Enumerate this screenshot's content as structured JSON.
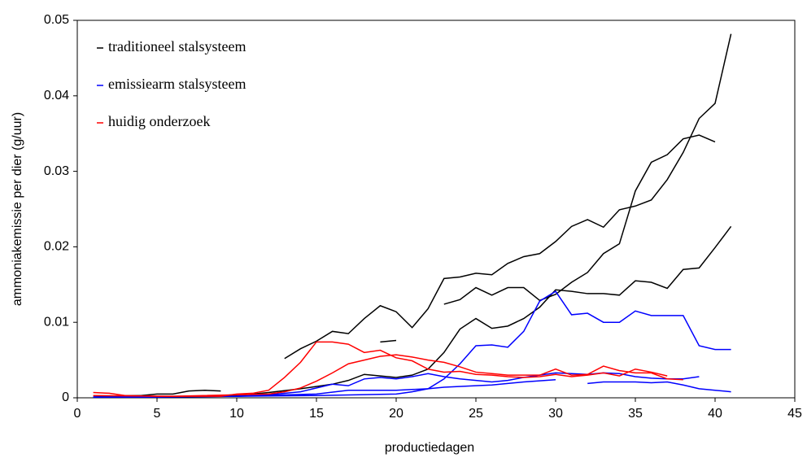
{
  "chart_data": {
    "type": "line",
    "xlabel": "productiedagen",
    "ylabel": "ammoniakemissie per dier (g/uur)",
    "xlim": [
      0,
      45
    ],
    "xticks": [
      0,
      5,
      10,
      15,
      20,
      25,
      30,
      35,
      40,
      45
    ],
    "ylim": [
      0,
      0.05
    ],
    "yticks": [
      0,
      0.01,
      0.02,
      0.03,
      0.04,
      0.05
    ],
    "series": [
      {
        "name": "traditioneel stalsysteem",
        "color": "#000000",
        "lines": [
          {
            "x": [
              1,
              2,
              3,
              4,
              5,
              6,
              7,
              8,
              9
            ],
            "values": [
              0.0001,
              0.0002,
              0.0003,
              0.0003,
              0.0005,
              0.0005,
              0.0009,
              0.001,
              0.0009
            ]
          },
          {
            "x": [
              13,
              14,
              15,
              16,
              17,
              18,
              19,
              20,
              21,
              22,
              23,
              24,
              25,
              26,
              27,
              28,
              29,
              30,
              31,
              32,
              33,
              34,
              35,
              36,
              37,
              38,
              39,
              40,
              41
            ],
            "values": [
              0.0052,
              0.0065,
              0.0075,
              0.0088,
              0.0085,
              0.0105,
              0.0122,
              0.0114,
              0.0093,
              0.0118,
              0.0158,
              0.016,
              0.0165,
              0.0163,
              0.0178,
              0.0187,
              0.0191,
              0.0207,
              0.0227,
              0.0236,
              0.0226,
              0.0249,
              0.0254,
              0.0262,
              0.0289,
              0.0325,
              0.037,
              0.039,
              0.0482
            ]
          },
          {
            "x": [
              19,
              20
            ],
            "values": [
              0.0074,
              0.0076
            ]
          },
          {
            "x": [
              23,
              24,
              25,
              26,
              27,
              28,
              29,
              30,
              31,
              32,
              33,
              34,
              35,
              36,
              37,
              38,
              39,
              40
            ],
            "values": [
              0.0124,
              0.013,
              0.0146,
              0.0136,
              0.0146,
              0.0146,
              0.0129,
              0.0137,
              0.0153,
              0.0166,
              0.0191,
              0.0204,
              0.0274,
              0.0312,
              0.0322,
              0.0343,
              0.0348,
              0.0339
            ]
          },
          {
            "x": [
              1,
              4,
              7,
              10,
              12,
              14,
              16,
              17,
              18,
              19,
              20,
              21,
              22,
              23,
              24,
              25,
              26,
              27,
              28,
              29,
              30,
              31,
              32,
              33,
              34,
              35,
              36,
              37,
              38,
              39,
              40,
              41
            ],
            "values": [
              0.0001,
              0.0001,
              0.0002,
              0.0003,
              0.0007,
              0.0012,
              0.0018,
              0.0023,
              0.0031,
              0.0029,
              0.0027,
              0.003,
              0.0038,
              0.006,
              0.0091,
              0.0105,
              0.0092,
              0.0095,
              0.0105,
              0.012,
              0.0143,
              0.0141,
              0.0138,
              0.0138,
              0.0136,
              0.0155,
              0.0153,
              0.0145,
              0.017,
              0.0172,
              0.0199,
              0.0227
            ]
          }
        ]
      },
      {
        "name": "emissiearm stalsysteem",
        "color": "#0000ff",
        "lines": [
          {
            "x": [
              1,
              5,
              10,
              15,
              20,
              21,
              22,
              23,
              24,
              25,
              26,
              27,
              28,
              29,
              30,
              31,
              32,
              33,
              34,
              35,
              36,
              37,
              38,
              39,
              40,
              41
            ],
            "values": [
              0.0001,
              0.0001,
              0.0002,
              0.0003,
              0.0005,
              0.0008,
              0.0012,
              0.0025,
              0.0045,
              0.0069,
              0.007,
              0.0067,
              0.0088,
              0.0128,
              0.0141,
              0.011,
              0.0112,
              0.01,
              0.01,
              0.0115,
              0.0109,
              0.0109,
              0.0109,
              0.0069,
              0.0064,
              0.0064
            ]
          },
          {
            "x": [
              10,
              12,
              14,
              16,
              17,
              18,
              19,
              20,
              21,
              22,
              23,
              24,
              25,
              26,
              27,
              28,
              29,
              30,
              31,
              32,
              33,
              34,
              35,
              36,
              37,
              38,
              39
            ],
            "values": [
              0.0002,
              0.0004,
              0.0008,
              0.0018,
              0.0016,
              0.0025,
              0.0027,
              0.0025,
              0.0028,
              0.0032,
              0.0028,
              0.0025,
              0.0023,
              0.0021,
              0.0023,
              0.0027,
              0.003,
              0.0033,
              0.0032,
              0.0031,
              0.0033,
              0.0032,
              0.0028,
              0.0026,
              0.0025,
              0.0025,
              0.0028
            ]
          },
          {
            "x": [
              1,
              10,
              15,
              17,
              20,
              22,
              23,
              25,
              26,
              28,
              30
            ],
            "values": [
              0.0001,
              0.0002,
              0.0005,
              0.001,
              0.001,
              0.0012,
              0.0014,
              0.0016,
              0.0017,
              0.0021,
              0.0024
            ]
          },
          {
            "x": [
              32,
              33,
              34,
              35,
              36,
              37,
              38,
              39,
              40,
              41
            ],
            "values": [
              0.0019,
              0.0021,
              0.0021,
              0.0021,
              0.002,
              0.0021,
              0.0017,
              0.0012,
              0.001,
              0.0008
            ]
          }
        ]
      },
      {
        "name": "huidig onderzoek",
        "color": "#ff0000",
        "lines": [
          {
            "x": [
              1,
              2,
              3,
              5,
              9,
              10,
              11,
              12,
              13,
              14,
              15,
              16,
              17,
              18,
              19,
              20,
              21,
              22,
              23,
              24,
              25,
              26,
              27,
              28,
              29,
              30,
              31,
              32,
              33,
              34,
              35,
              36,
              37
            ],
            "values": [
              0.0007,
              0.0006,
              0.0003,
              0.0002,
              0.0002,
              0.0005,
              0.0006,
              0.001,
              0.0027,
              0.0047,
              0.0074,
              0.0074,
              0.0071,
              0.006,
              0.0063,
              0.0053,
              0.0049,
              0.0038,
              0.0034,
              0.0035,
              0.0031,
              0.003,
              0.0028,
              0.0027,
              0.0028,
              0.0031,
              0.0028,
              0.003,
              0.0033,
              0.0029,
              0.0038,
              0.0034,
              0.0029
            ]
          },
          {
            "x": [
              1,
              6,
              12,
              13,
              14,
              15,
              16,
              17,
              18,
              19,
              20,
              21,
              22,
              23,
              24,
              25,
              26,
              27,
              28,
              29,
              30,
              31,
              32,
              33,
              34,
              35,
              36,
              37,
              38
            ],
            "values": [
              0.0003,
              0.0002,
              0.0005,
              0.0008,
              0.0013,
              0.0022,
              0.0033,
              0.0045,
              0.005,
              0.0055,
              0.0057,
              0.0054,
              0.005,
              0.0047,
              0.0041,
              0.0034,
              0.0032,
              0.003,
              0.003,
              0.003,
              0.0038,
              0.003,
              0.0031,
              0.0042,
              0.0036,
              0.0033,
              0.0033,
              0.0025,
              0.0024
            ]
          }
        ]
      }
    ]
  }
}
